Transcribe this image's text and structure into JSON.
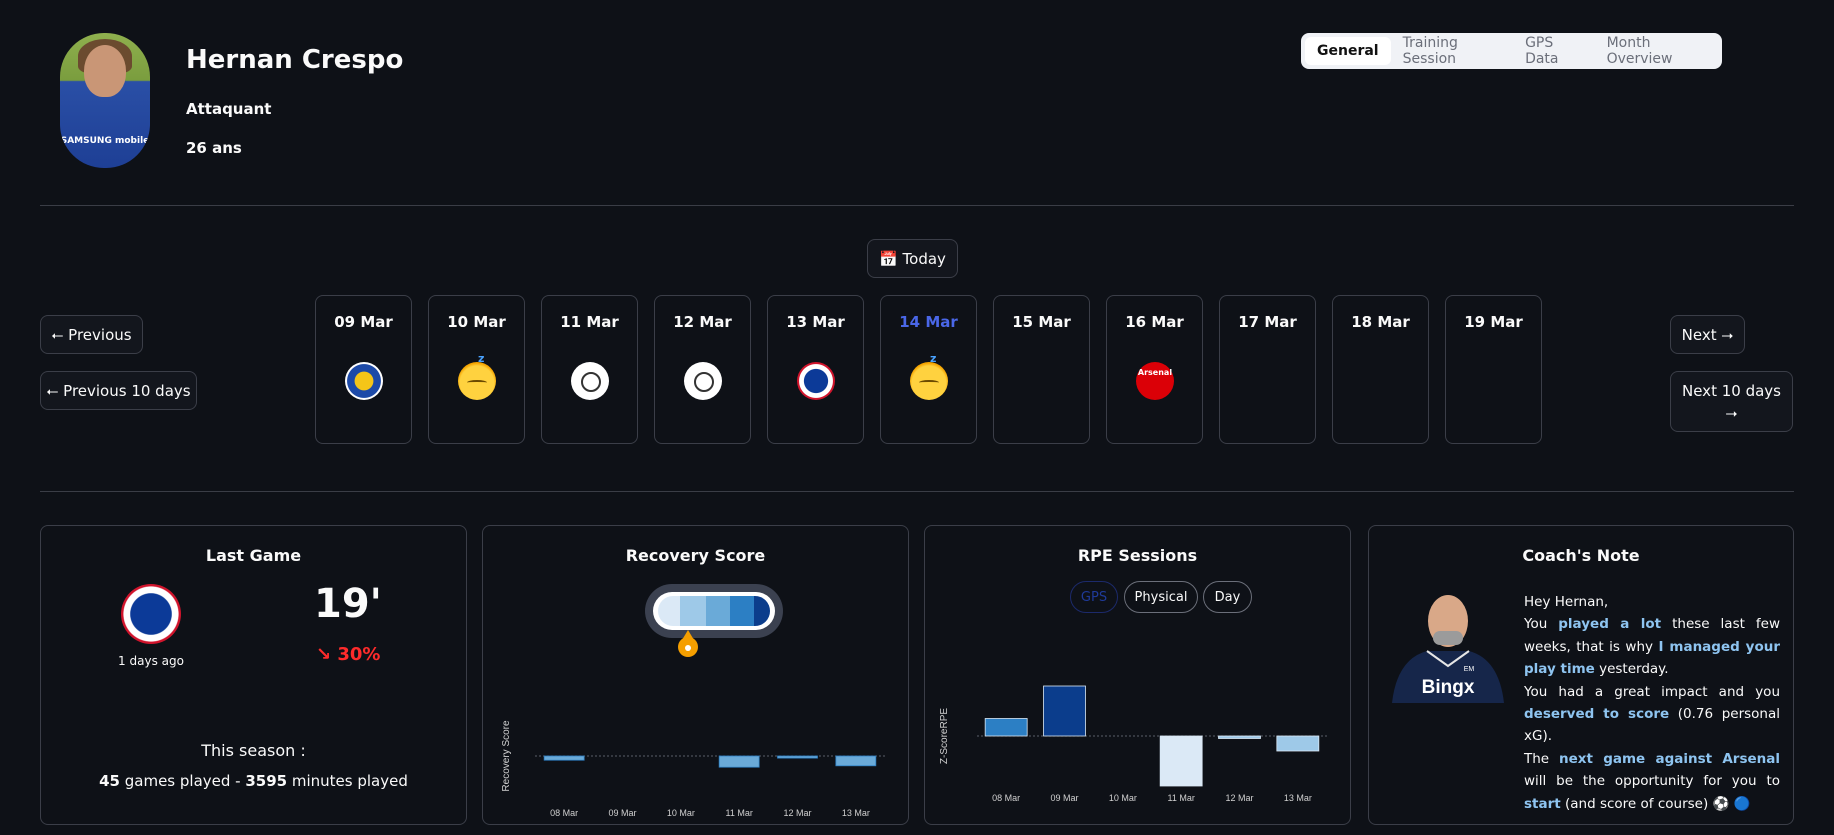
{
  "player": {
    "name": "Hernan Crespo",
    "position": "Attaquant",
    "age": "26 ans",
    "shirt_sponsor": "SAMSUNG mobile"
  },
  "tabs": [
    {
      "label": "General",
      "active": true
    },
    {
      "label": "Training Session",
      "active": false
    },
    {
      "label": "GPS Data",
      "active": false
    },
    {
      "label": "Month Overview",
      "active": false
    }
  ],
  "nav": {
    "today": "📅 Today",
    "previous": "⭠ Previous",
    "previous10": "⭠ Previous 10 days",
    "next": "Next ⭢",
    "next10_line1": "Next 10 days",
    "next10_line2": "⭢"
  },
  "days": [
    {
      "label": "09 Mar",
      "icon": "leicester-crest-icon"
    },
    {
      "label": "10 Mar",
      "icon": "sleeping-face-icon"
    },
    {
      "label": "11 Mar",
      "icon": "stopwatch-icon"
    },
    {
      "label": "12 Mar",
      "icon": "stopwatch-icon"
    },
    {
      "label": "13 Mar",
      "icon": "copenhagen-crest-icon"
    },
    {
      "label": "14 Mar",
      "icon": "sleeping-face-icon",
      "today": true
    },
    {
      "label": "15 Mar",
      "icon": ""
    },
    {
      "label": "16 Mar",
      "icon": "arsenal-crest-icon"
    },
    {
      "label": "17 Mar",
      "icon": ""
    },
    {
      "label": "18 Mar",
      "icon": ""
    },
    {
      "label": "19 Mar",
      "icon": ""
    }
  ],
  "arsenal_text": "Arsenal",
  "last_game": {
    "title": "Last Game",
    "ago": "1 days ago",
    "minutes": "19'",
    "trend": "↘ 30%",
    "season_label": "This season :",
    "games": "45",
    "games_text": " games played - ",
    "minutes_total": "3595",
    "minutes_text": " minutes played"
  },
  "recovery": {
    "title": "Recovery Score",
    "ylabel": "Recovery Score"
  },
  "rpe": {
    "title": "RPE Sessions",
    "toggles": [
      "GPS",
      "Physical",
      "Day"
    ],
    "ylabel": "Z-ScoreRPE"
  },
  "coach": {
    "title": "Coach's Note",
    "greeting": "Hey Hernan,",
    "l1a": "You ",
    "l1b": "played a lot",
    "l1c": " these last few weeks, that is why ",
    "l1d": "I managed your play time",
    "l1e": " yesterday.",
    "l2a": "You had a great impact and you ",
    "l2b": "deserved to score",
    "l2c": " (0.76 personal xG).",
    "l3a": "The ",
    "l3b": "next game against Arsenal",
    "l3c": " will be the opportunity for you to ",
    "l3d": "start",
    "l3e": " (and score of course) ⚽ 🔵",
    "brand": "Bingx",
    "initials": "EM"
  },
  "colors": {
    "accent_today": "#4a67e8",
    "trend_down": "#ff2b2b",
    "highlight": "#8ec4f0"
  },
  "chart_data": [
    {
      "type": "bar",
      "title": "Recovery Score",
      "ylabel": "Recovery Score",
      "categories": [
        "08 Mar",
        "09 Mar",
        "10 Mar",
        "11 Mar",
        "12 Mar",
        "13 Mar"
      ],
      "values": [
        -0.3,
        0,
        0,
        -0.8,
        -0.15,
        -0.7
      ],
      "ylim": [
        -2,
        2
      ]
    },
    {
      "type": "bar",
      "title": "RPE Sessions",
      "ylabel": "Z-ScoreRPE",
      "categories": [
        "08 Mar",
        "09 Mar",
        "10 Mar",
        "11 Mar",
        "12 Mar",
        "13 Mar"
      ],
      "values": [
        0.7,
        2.0,
        0,
        -2.0,
        -0.1,
        -0.6
      ],
      "colors": [
        "#2c7fc4",
        "#0b3d8c",
        "#2c7fc4",
        "#dbe9f6",
        "#9ec9e8",
        "#9ec9e8"
      ],
      "ylim": [
        -2,
        2
      ]
    }
  ]
}
